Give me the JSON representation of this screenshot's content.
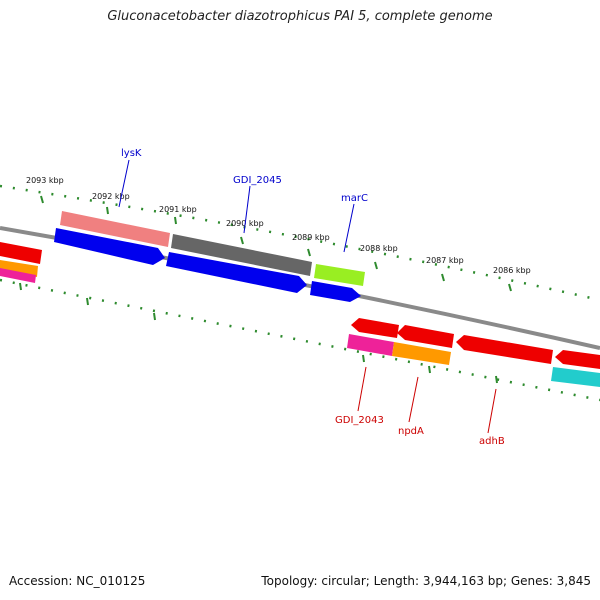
{
  "title": "Gluconacetobacter diazotrophicus PAI 5, complete genome",
  "footer": {
    "accession": "Accession: NC_010125",
    "summary": "Topology: circular; Length: 3,944,163 bp; Genes: 3,845"
  },
  "scale_labels": [
    "2093 kbp",
    "2092 kbp",
    "2091 kbp",
    "2090 kbp",
    "2089 kbp",
    "2088 kbp",
    "2087 kbp",
    "2086 kbp"
  ],
  "gene_labels_top": [
    {
      "text": "lysK",
      "color": "#0000cc"
    },
    {
      "text": "GDI_2045",
      "color": "#0000cc"
    },
    {
      "text": "marC",
      "color": "#0000cc"
    }
  ],
  "gene_labels_bottom": [
    {
      "text": "GDI_2043",
      "color": "#cc0000"
    },
    {
      "text": "npdA",
      "color": "#cc0000"
    },
    {
      "text": "adhB",
      "color": "#cc0000"
    }
  ],
  "colors": {
    "backbone": "#8a8a8a",
    "tick": "#2e8b2e",
    "blue": "#0000ee",
    "red": "#ee0000",
    "salmon": "#f08080",
    "gray": "#666666",
    "lime": "#99ee22",
    "magenta": "#ee2299",
    "orange": "#ff9900",
    "cyan": "#22cccc"
  }
}
